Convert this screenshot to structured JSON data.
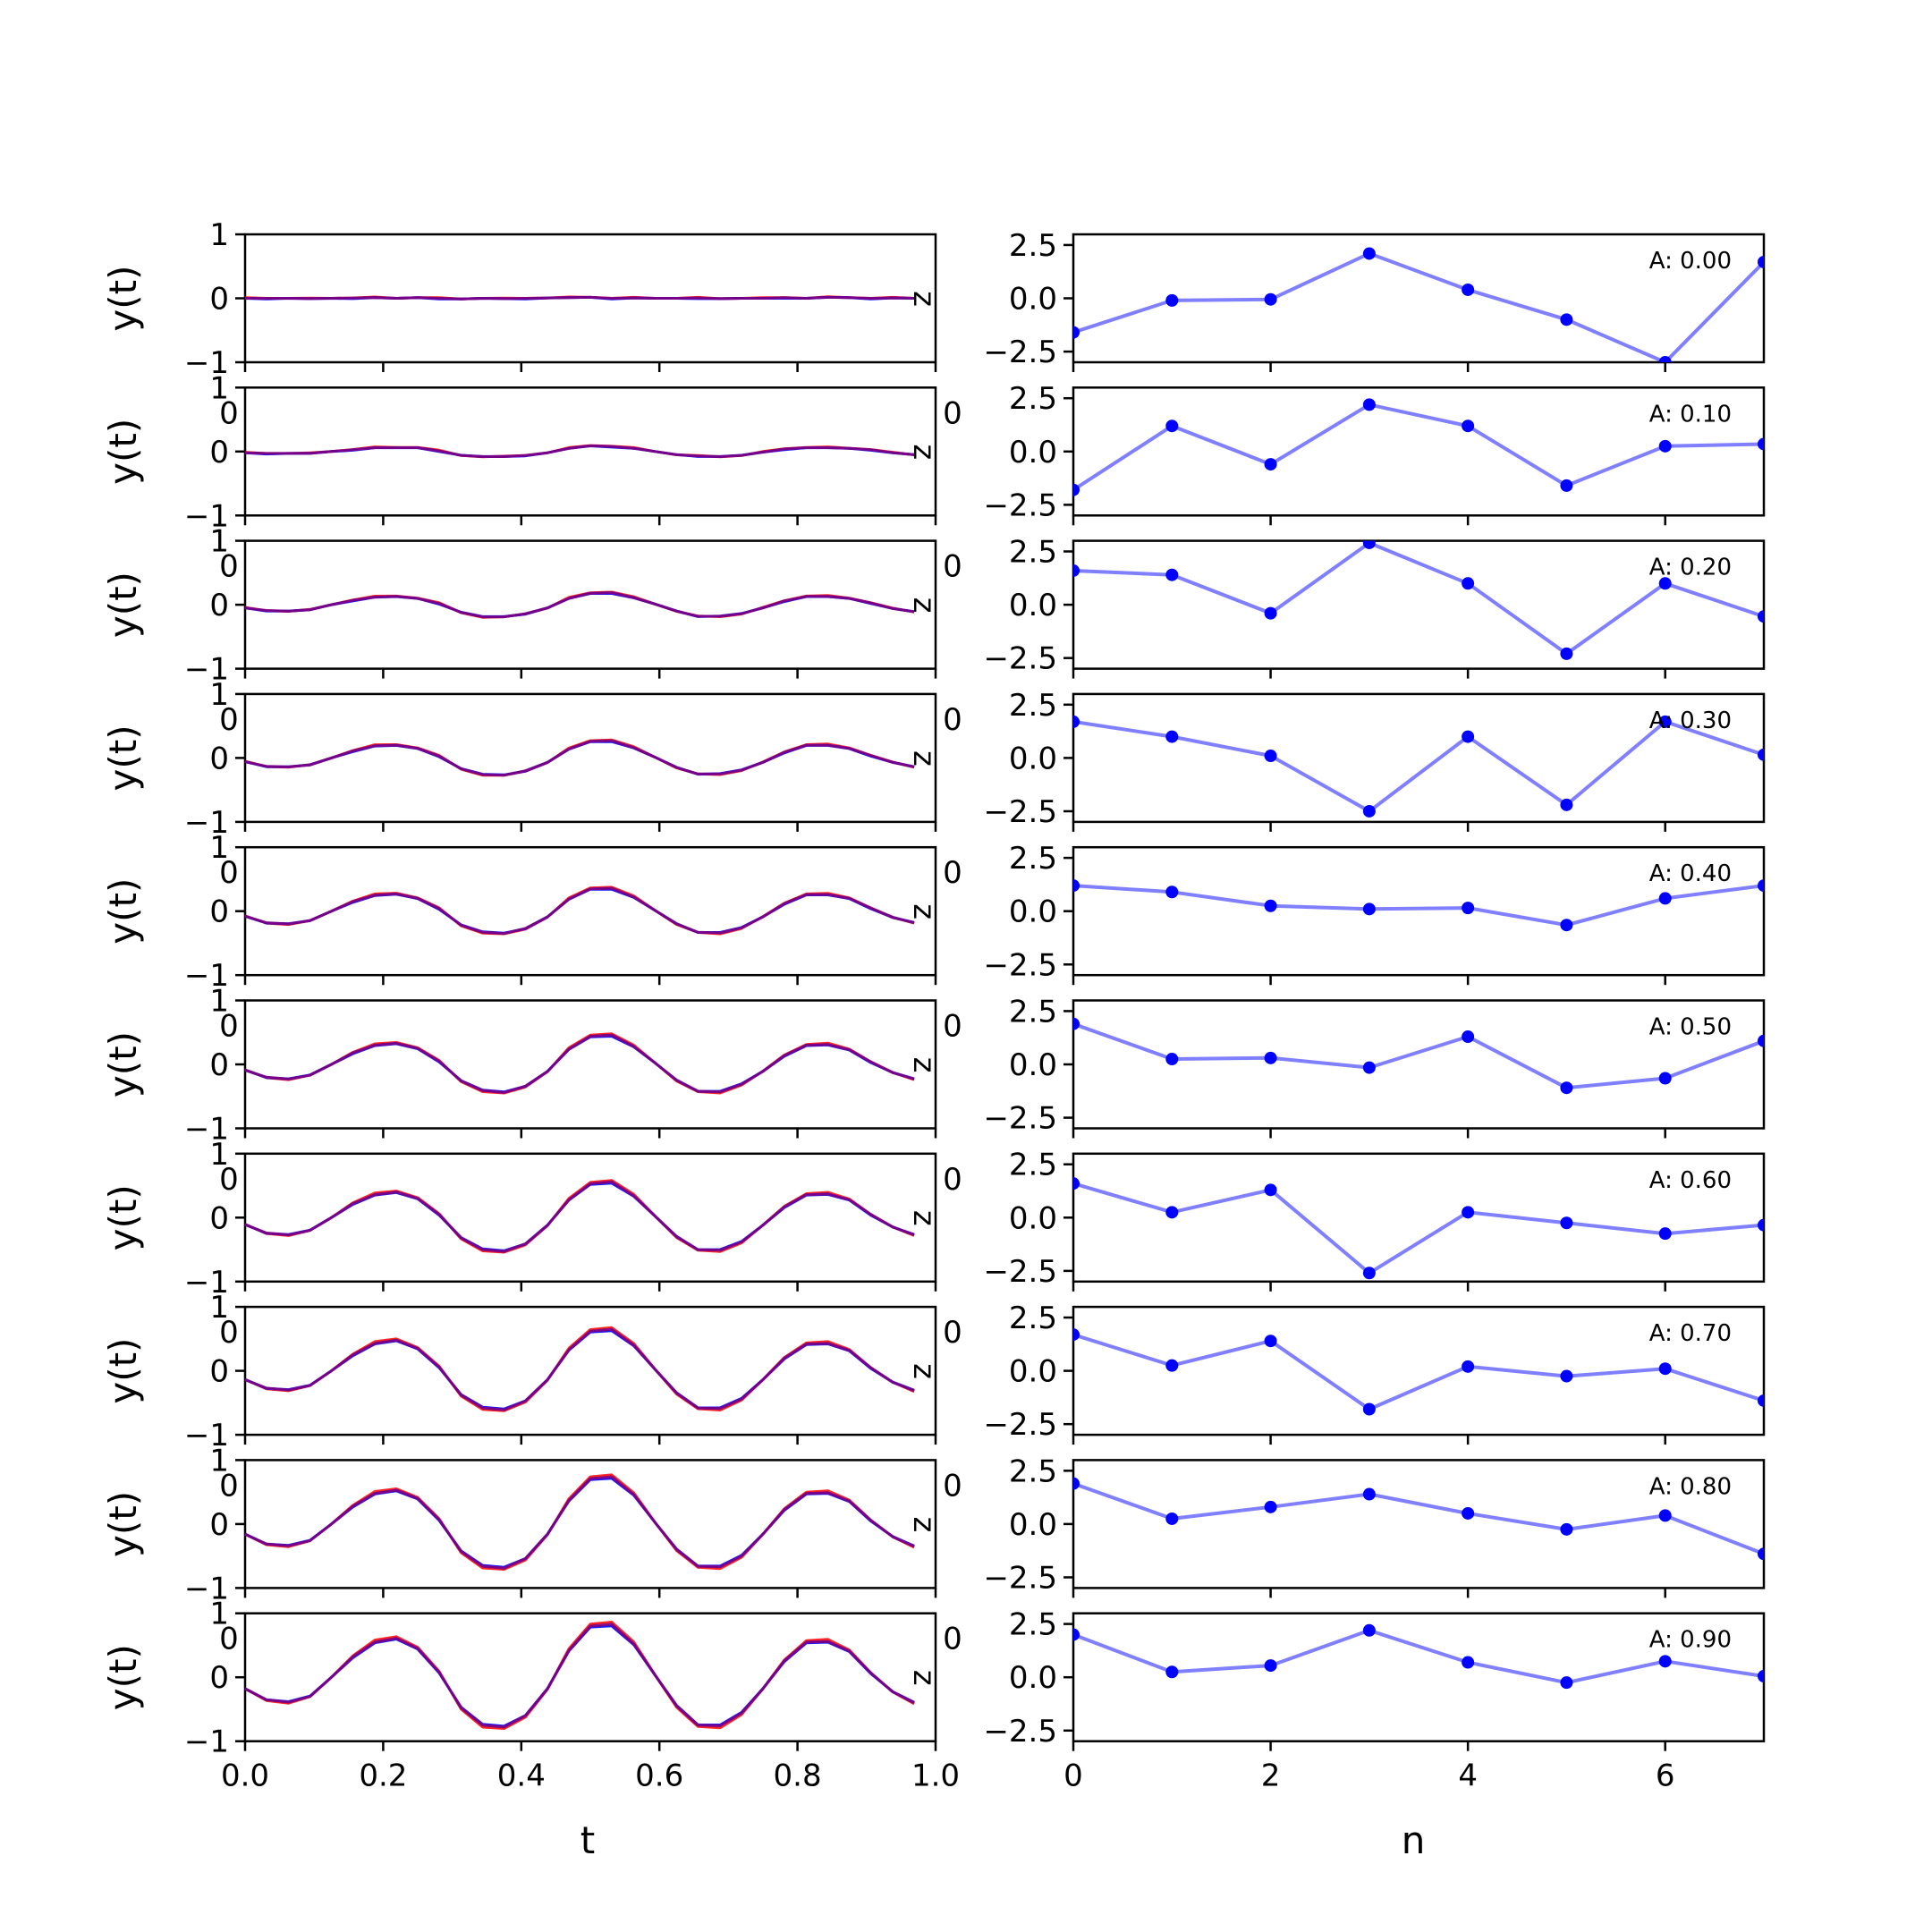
{
  "chart_data": {
    "type": "line",
    "left_column": {
      "xlabel": "t",
      "ylabel": "y(t)",
      "xlim": [
        0,
        1
      ],
      "ylim": [
        -1,
        1
      ],
      "xticks": [
        "0.0",
        "0.2",
        "0.4",
        "0.6",
        "0.8",
        "1.0"
      ],
      "yticks": [
        "1",
        "0",
        "−1"
      ],
      "corner_text": "z",
      "series_colors": {
        "red": "#ff0000",
        "blue": "#0000ff",
        "purple": "#800080"
      },
      "t": [
        0.0,
        0.031,
        0.063,
        0.094,
        0.125,
        0.156,
        0.188,
        0.219,
        0.25,
        0.281,
        0.313,
        0.344,
        0.375,
        0.406,
        0.438,
        0.469,
        0.5,
        0.531,
        0.563,
        0.594,
        0.625,
        0.656,
        0.688,
        0.719,
        0.75,
        0.781,
        0.813,
        0.844,
        0.875,
        0.906,
        0.938,
        0.969
      ],
      "panels": [
        {
          "A": 0.0,
          "y": [
            0.0,
            0.0,
            0.0,
            -0.005,
            0.0,
            0.005,
            0.01,
            0.0,
            0.01,
            0.0,
            -0.01,
            0.0,
            -0.005,
            0.0,
            0.005,
            0.01,
            0.015,
            0.0,
            0.005,
            0.0,
            0.0,
            0.005,
            -0.005,
            0.0,
            0.0,
            0.01,
            0.0,
            0.015,
            0.01,
            0.0,
            0.005,
            0.0
          ]
        },
        {
          "A": 0.1,
          "y": [
            -0.02,
            -0.03,
            -0.03,
            -0.03,
            0.0,
            0.03,
            0.06,
            0.06,
            0.06,
            0.01,
            -0.06,
            -0.08,
            -0.08,
            -0.06,
            -0.02,
            0.05,
            0.09,
            0.08,
            0.05,
            0.0,
            -0.05,
            -0.07,
            -0.08,
            -0.06,
            -0.01,
            0.04,
            0.06,
            0.06,
            0.05,
            0.03,
            -0.02,
            -0.05
          ]
        },
        {
          "A": 0.2,
          "y": [
            -0.05,
            -0.09,
            -0.1,
            -0.08,
            0.0,
            0.07,
            0.12,
            0.13,
            0.1,
            0.02,
            -0.12,
            -0.19,
            -0.19,
            -0.14,
            -0.05,
            0.1,
            0.18,
            0.19,
            0.11,
            0.01,
            -0.1,
            -0.18,
            -0.18,
            -0.14,
            -0.05,
            0.06,
            0.13,
            0.13,
            0.1,
            0.03,
            -0.06,
            -0.11
          ]
        },
        {
          "A": 0.3,
          "y": [
            -0.06,
            -0.13,
            -0.14,
            -0.11,
            0.0,
            0.11,
            0.19,
            0.2,
            0.15,
            0.03,
            -0.17,
            -0.26,
            -0.27,
            -0.2,
            -0.07,
            0.14,
            0.26,
            0.27,
            0.16,
            0.01,
            -0.15,
            -0.25,
            -0.25,
            -0.19,
            -0.07,
            0.09,
            0.2,
            0.2,
            0.15,
            0.04,
            -0.07,
            -0.14
          ]
        },
        {
          "A": 0.4,
          "y": [
            -0.08,
            -0.18,
            -0.2,
            -0.15,
            0.0,
            0.15,
            0.25,
            0.27,
            0.2,
            0.04,
            -0.22,
            -0.33,
            -0.35,
            -0.27,
            -0.09,
            0.19,
            0.35,
            0.36,
            0.22,
            0.01,
            -0.2,
            -0.33,
            -0.34,
            -0.26,
            -0.09,
            0.12,
            0.26,
            0.26,
            0.2,
            0.05,
            -0.1,
            -0.18
          ]
        },
        {
          "A": 0.5,
          "y": [
            -0.09,
            -0.2,
            -0.23,
            -0.17,
            0.0,
            0.18,
            0.3,
            0.33,
            0.25,
            0.05,
            -0.26,
            -0.41,
            -0.44,
            -0.34,
            -0.11,
            0.24,
            0.44,
            0.46,
            0.28,
            0.02,
            -0.25,
            -0.42,
            -0.43,
            -0.31,
            -0.11,
            0.14,
            0.3,
            0.31,
            0.23,
            0.04,
            -0.13,
            -0.23
          ]
        },
        {
          "A": 0.6,
          "y": [
            -0.11,
            -0.24,
            -0.27,
            -0.2,
            0.0,
            0.22,
            0.36,
            0.4,
            0.3,
            0.05,
            -0.32,
            -0.5,
            -0.53,
            -0.41,
            -0.12,
            0.28,
            0.53,
            0.56,
            0.34,
            0.02,
            -0.3,
            -0.5,
            -0.51,
            -0.38,
            -0.12,
            0.17,
            0.36,
            0.37,
            0.28,
            0.05,
            -0.15,
            -0.27
          ]
        },
        {
          "A": 0.7,
          "y": [
            -0.14,
            -0.27,
            -0.3,
            -0.23,
            0.0,
            0.25,
            0.43,
            0.48,
            0.35,
            0.06,
            -0.38,
            -0.58,
            -0.61,
            -0.47,
            -0.14,
            0.33,
            0.62,
            0.65,
            0.4,
            0.02,
            -0.35,
            -0.58,
            -0.59,
            -0.44,
            -0.14,
            0.2,
            0.42,
            0.43,
            0.32,
            0.05,
            -0.18,
            -0.31
          ]
        },
        {
          "A": 0.8,
          "y": [
            -0.16,
            -0.31,
            -0.34,
            -0.26,
            0.0,
            0.28,
            0.48,
            0.53,
            0.4,
            0.07,
            -0.43,
            -0.66,
            -0.69,
            -0.54,
            -0.16,
            0.37,
            0.71,
            0.74,
            0.46,
            0.02,
            -0.4,
            -0.66,
            -0.67,
            -0.5,
            -0.16,
            0.23,
            0.48,
            0.49,
            0.36,
            0.06,
            -0.2,
            -0.35
          ]
        },
        {
          "A": 0.9,
          "y": [
            -0.18,
            -0.35,
            -0.39,
            -0.3,
            0.0,
            0.32,
            0.55,
            0.61,
            0.45,
            0.08,
            -0.48,
            -0.75,
            -0.78,
            -0.6,
            -0.18,
            0.42,
            0.8,
            0.83,
            0.52,
            0.03,
            -0.45,
            -0.75,
            -0.76,
            -0.56,
            -0.18,
            0.26,
            0.55,
            0.56,
            0.41,
            0.07,
            -0.23,
            -0.4
          ]
        }
      ],
      "overlap_tick_labels": [
        "0",
        "0",
        "0",
        "0",
        "0",
        "0",
        "0",
        "0",
        "0"
      ]
    },
    "right_column": {
      "xlabel": "n",
      "xlim": [
        0,
        7
      ],
      "ylim": [
        -3,
        3
      ],
      "xticks": [
        "0",
        "2",
        "4",
        "6"
      ],
      "yticks": [
        "2.5",
        "0.0",
        "−2.5"
      ],
      "line_color": "#0000ff",
      "n": [
        0,
        1,
        2,
        3,
        4,
        5,
        6,
        7
      ],
      "panels": [
        {
          "label": "A: 0.00",
          "values": [
            -1.6,
            -0.1,
            -0.05,
            2.1,
            0.4,
            -1.0,
            -3.0,
            1.7
          ]
        },
        {
          "label": "A: 0.10",
          "values": [
            -1.8,
            1.2,
            -0.6,
            2.2,
            1.2,
            -1.6,
            0.25,
            0.35
          ]
        },
        {
          "label": "A: 0.20",
          "values": [
            1.6,
            1.4,
            -0.4,
            2.9,
            1.0,
            -2.3,
            1.0,
            -0.55
          ]
        },
        {
          "label": "A: 0.30",
          "values": [
            1.7,
            1.0,
            0.1,
            -2.5,
            1.0,
            -2.2,
            1.7,
            0.15
          ]
        },
        {
          "label": "A: 0.40",
          "values": [
            1.2,
            0.9,
            0.25,
            0.1,
            0.15,
            -0.65,
            0.6,
            1.2
          ]
        },
        {
          "label": "A: 0.50",
          "values": [
            1.9,
            0.25,
            0.3,
            -0.15,
            1.3,
            -1.1,
            -0.65,
            1.1
          ]
        },
        {
          "label": "A: 0.60",
          "values": [
            1.6,
            0.25,
            1.3,
            -2.6,
            0.25,
            -0.25,
            -0.75,
            -0.35
          ]
        },
        {
          "label": "A: 0.70",
          "values": [
            1.7,
            0.25,
            1.4,
            -1.8,
            0.2,
            -0.25,
            0.1,
            -1.4
          ]
        },
        {
          "label": "A: 0.80",
          "values": [
            1.9,
            0.25,
            0.8,
            1.4,
            0.5,
            -0.25,
            0.4,
            -1.4
          ]
        },
        {
          "label": "A: 0.90",
          "values": [
            2.0,
            0.25,
            0.55,
            2.2,
            0.7,
            -0.25,
            0.75,
            0.05
          ]
        }
      ],
      "overlap_tick_labels": [
        "0",
        "0",
        "0",
        "0",
        "0",
        "0",
        "0",
        "0",
        "0"
      ]
    }
  }
}
